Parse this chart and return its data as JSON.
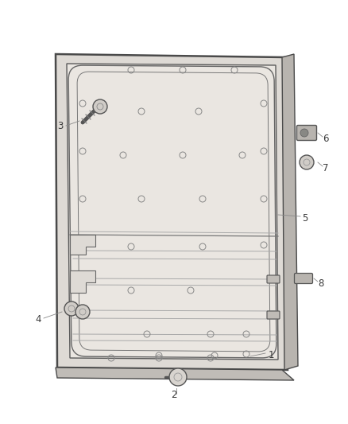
{
  "background_color": "#ffffff",
  "fig_width": 4.38,
  "fig_height": 5.33,
  "dpi": 100,
  "text_color": "#3a3a3a",
  "line_color": "#888888",
  "font_size": 8.5,
  "panel_edge_color": "#4a4a4a",
  "panel_face_color": "#e8e4df",
  "inner_edge_color": "#5a5a5a",
  "groove_color": "#aaaaaa",
  "part_fill": "#cccccc",
  "part_edge": "#555555"
}
